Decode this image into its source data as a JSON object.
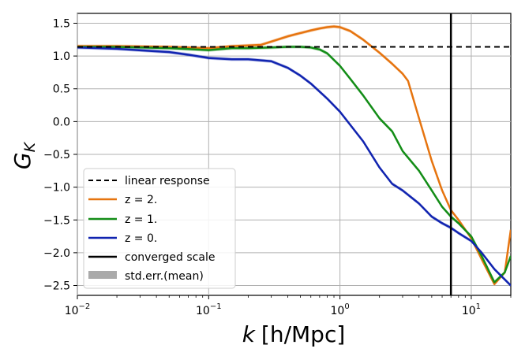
{
  "chart_data": {
    "type": "line",
    "xscale": "log",
    "xlim": [
      0.01,
      20
    ],
    "ylim": [
      -2.65,
      1.65
    ],
    "xlabel_var": "k",
    "xlabel_unit": "[h/Mpc]",
    "ylabel_main": "G",
    "ylabel_sub": "K",
    "xticks": [
      {
        "value": 0.01,
        "base": "10",
        "exp": "−2"
      },
      {
        "value": 0.1,
        "base": "10",
        "exp": "−1"
      },
      {
        "value": 1,
        "base": "10",
        "exp": "0"
      },
      {
        "value": 10,
        "base": "10",
        "exp": "1"
      }
    ],
    "yticks": [
      {
        "value": 1.5,
        "label": "1.5"
      },
      {
        "value": 1.0,
        "label": "1.0"
      },
      {
        "value": 0.5,
        "label": "0.5"
      },
      {
        "value": 0.0,
        "label": "0.0"
      },
      {
        "value": -0.5,
        "label": "−0.5"
      },
      {
        "value": -1.0,
        "label": "−1.0"
      },
      {
        "value": -1.5,
        "label": "−1.5"
      },
      {
        "value": -2.0,
        "label": "−2.0"
      },
      {
        "value": -2.5,
        "label": "−2.5"
      }
    ],
    "grid": true,
    "linear_response": {
      "label": "linear response",
      "value": 1.14,
      "color": "#000000",
      "dash": "dashed"
    },
    "converged_scale": {
      "label": "converged scale",
      "value": 7.0,
      "color": "#000000"
    },
    "std_err": {
      "label": "std.err.(mean)",
      "color": "#aaaaaa"
    },
    "series": [
      {
        "name": "z = 2.",
        "color": "#e6740f",
        "x": [
          0.01,
          0.02,
          0.05,
          0.1,
          0.15,
          0.2,
          0.25,
          0.3,
          0.4,
          0.5,
          0.6,
          0.7,
          0.8,
          0.9,
          1.0,
          1.2,
          1.5,
          2.0,
          2.5,
          3.0,
          3.3,
          4.0,
          5.0,
          6.0,
          7.0,
          8.0,
          10.0,
          12.0,
          15.0,
          18.0,
          20.0
        ],
        "y": [
          1.15,
          1.15,
          1.14,
          1.12,
          1.15,
          1.16,
          1.17,
          1.22,
          1.3,
          1.35,
          1.39,
          1.42,
          1.44,
          1.45,
          1.44,
          1.38,
          1.25,
          1.05,
          0.88,
          0.73,
          0.62,
          0.05,
          -0.6,
          -1.05,
          -1.35,
          -1.5,
          -1.78,
          -2.1,
          -2.48,
          -2.3,
          -1.65
        ]
      },
      {
        "name": "z = 1.",
        "color": "#138d17",
        "x": [
          0.01,
          0.02,
          0.05,
          0.1,
          0.15,
          0.2,
          0.3,
          0.4,
          0.5,
          0.6,
          0.7,
          0.8,
          1.0,
          1.2,
          1.5,
          2.0,
          2.5,
          3.0,
          4.0,
          5.0,
          6.0,
          7.0,
          8.0,
          10.0,
          12.0,
          15.0,
          18.0,
          20.0
        ],
        "y": [
          1.14,
          1.14,
          1.12,
          1.09,
          1.12,
          1.12,
          1.13,
          1.14,
          1.14,
          1.13,
          1.1,
          1.04,
          0.85,
          0.65,
          0.4,
          0.05,
          -0.15,
          -0.45,
          -0.75,
          -1.05,
          -1.3,
          -1.45,
          -1.55,
          -1.75,
          -2.05,
          -2.45,
          -2.3,
          -2.05
        ]
      },
      {
        "name": "z = 0.",
        "color": "#1124b0",
        "x": [
          0.01,
          0.02,
          0.05,
          0.07,
          0.1,
          0.15,
          0.2,
          0.3,
          0.4,
          0.5,
          0.6,
          0.8,
          1.0,
          1.5,
          2.0,
          2.5,
          3.0,
          4.0,
          5.0,
          6.0,
          7.0,
          8.0,
          10.0,
          12.0,
          15.0,
          20.0
        ],
        "y": [
          1.13,
          1.11,
          1.06,
          1.02,
          0.97,
          0.95,
          0.95,
          0.92,
          0.82,
          0.7,
          0.58,
          0.35,
          0.15,
          -0.3,
          -0.7,
          -0.95,
          -1.05,
          -1.25,
          -1.45,
          -1.55,
          -1.62,
          -1.7,
          -1.82,
          -2.0,
          -2.25,
          -2.5
        ]
      }
    ]
  }
}
